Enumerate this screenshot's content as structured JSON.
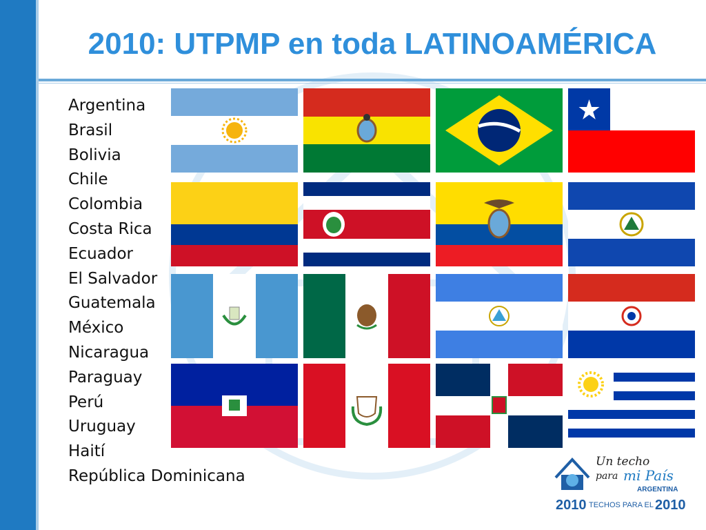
{
  "title": "2010: UTPMP en toda LATINOAMÉRICA",
  "countries": [
    "Argentina",
    "Brasil",
    "Bolivia",
    "Chile",
    "Colombia",
    "Costa Rica",
    "Ecuador",
    "El Salvador",
    "Guatemala",
    "México",
    "Nicaragua",
    "Paraguay",
    "Perú",
    "Uruguay",
    "Haití",
    "República Dominicana"
  ],
  "flags": [
    "argentina-flag",
    "bolivia-flag",
    "brazil-flag",
    "chile-flag",
    "colombia-flag",
    "costa-rica-flag",
    "ecuador-flag",
    "el-salvador-flag",
    "guatemala-flag",
    "mexico-flag",
    "nicaragua-flag",
    "paraguay-flag",
    "haiti-flag",
    "peru-flag",
    "dominican-republic-flag",
    "uruguay-flag"
  ],
  "logo": {
    "line1": "Un techo",
    "line2": "para",
    "line3": "mi País",
    "country": "ARGENTINA",
    "year_left": "2010",
    "tagline": "TECHOS PARA EL",
    "year_right": "2010"
  },
  "colors": {
    "accent_bar": "#1f7ac2",
    "title": "#2f8fdb"
  }
}
